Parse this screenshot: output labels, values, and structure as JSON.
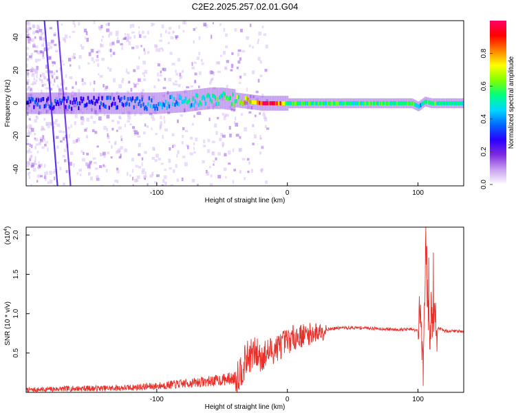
{
  "title": "C2E2.2025.257.02.01.G04",
  "chart_data": [
    {
      "type": "heatmap",
      "title": "C2E2.2025.257.02.01.G04",
      "xlabel": "Height of straight line (km)",
      "ylabel": "Frequency (Hz)",
      "xlim": [
        -200,
        135
      ],
      "ylim": [
        -50,
        50
      ],
      "xticks": [
        -100,
        0,
        100
      ],
      "yticks": [
        -40,
        -20,
        0,
        20,
        40
      ],
      "colorbar": {
        "label": "Normalized spectral amplitude",
        "range": [
          0.0,
          1.0
        ],
        "ticks": [
          "0.0",
          "0.2",
          "0.4",
          "0.6",
          "0.8"
        ],
        "colors": [
          "#ffffff",
          "#c8a0f0",
          "#7d2be0",
          "#2a00ff",
          "#0066ff",
          "#00d8ff",
          "#00ff80",
          "#80ff00",
          "#ffff00",
          "#ff8000",
          "#ff0000",
          "#ff0066"
        ]
      },
      "ridge": {
        "x": [
          -200,
          -180,
          -160,
          -140,
          -120,
          -100,
          -80,
          -60,
          -50,
          -40,
          -30,
          -20,
          -10,
          0,
          20,
          40,
          60,
          80,
          95,
          100,
          105,
          110,
          135
        ],
        "freq": [
          0,
          0,
          0,
          0,
          0,
          0,
          1,
          3,
          3,
          2,
          1,
          0,
          0,
          0,
          0,
          0,
          0,
          0,
          0,
          -2,
          1,
          0,
          0
        ],
        "amplitude": [
          0.3,
          0.3,
          0.3,
          0.3,
          0.35,
          0.4,
          0.45,
          0.5,
          0.55,
          0.6,
          0.75,
          0.9,
          0.95,
          0.55,
          0.55,
          0.55,
          0.55,
          0.55,
          0.6,
          0.4,
          0.55,
          0.55,
          0.5
        ]
      }
    },
    {
      "type": "line",
      "xlabel": "Height of straight line (km)",
      "ylabel": "SNR (10 * v/v)",
      "yscale_label": "(x10",
      "yscale_exp": "4",
      "xlim": [
        -200,
        135
      ],
      "ylim": [
        0,
        2.1
      ],
      "xticks": [
        -100,
        0,
        100
      ],
      "yticks": [
        0.5,
        1.0,
        1.5,
        2.0
      ],
      "series": [
        {
          "name": "SNR",
          "color": "#e8302a",
          "x": [
            -200,
            -180,
            -160,
            -140,
            -120,
            -100,
            -80,
            -60,
            -50,
            -40,
            -35,
            -30,
            -25,
            -20,
            -15,
            -10,
            -5,
            0,
            5,
            10,
            20,
            30,
            40,
            50,
            60,
            70,
            80,
            90,
            95,
            100,
            102,
            104,
            106,
            108,
            110,
            115,
            120,
            135
          ],
          "y": [
            0.03,
            0.04,
            0.05,
            0.05,
            0.06,
            0.08,
            0.11,
            0.14,
            0.16,
            0.18,
            0.3,
            0.45,
            0.5,
            0.45,
            0.5,
            0.55,
            0.6,
            0.65,
            0.7,
            0.72,
            0.75,
            0.8,
            0.82,
            0.82,
            0.82,
            0.81,
            0.8,
            0.8,
            0.8,
            0.78,
            1.0,
            0.4,
            2.05,
            0.75,
            0.95,
            0.82,
            0.78,
            0.78
          ]
        }
      ]
    }
  ]
}
